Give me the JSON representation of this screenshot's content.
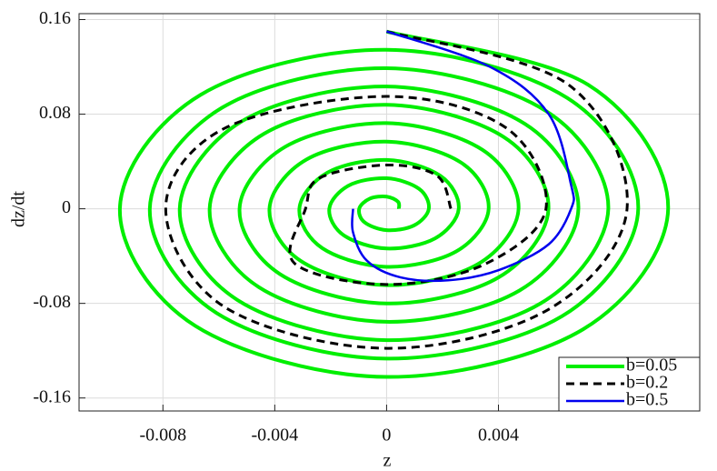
{
  "chart_data": {
    "type": "line",
    "x_label": "z",
    "y_label": "dz/dt",
    "xlim": [
      -0.011,
      0.0112
    ],
    "ylim": [
      -0.171,
      0.165
    ],
    "xticks": [
      -0.008,
      -0.004,
      0,
      0.004
    ],
    "yticks": [
      -0.16,
      -0.08,
      0,
      0.08,
      0.16
    ],
    "grid": true,
    "legend": "lower right",
    "series": [
      {
        "name": "b=0.05",
        "color": "#00ee00",
        "linestyle": "solid",
        "x": [
          0,
          0.00722,
          0.01007,
          0.00703,
          0,
          -0.00684,
          -0.00954,
          -0.00665,
          0,
          0.00646,
          0.009,
          0.00627,
          0,
          -0.00608,
          -0.00847,
          -0.00589,
          0,
          0.0057,
          0.00793,
          0.00551,
          0,
          -0.00533,
          -0.0074,
          -0.00514,
          0,
          0.00495,
          0.00686,
          0.00476,
          0,
          -0.00457,
          -0.00633,
          -0.00438,
          0,
          0.00419,
          0.00579,
          0.004,
          0,
          -0.00381,
          -0.00526,
          -0.00362,
          0,
          0.00343,
          0.00472,
          0.00325,
          0,
          -0.00306,
          -0.00419,
          -0.00287,
          0,
          0.00268,
          0.00365,
          0.00249,
          0,
          -0.0023,
          -0.00312,
          -0.00211,
          0,
          0.00192,
          0.00258,
          0.00173,
          0,
          -0.00154,
          -0.00205,
          -0.00135,
          0,
          0.00116,
          0.00151,
          0.00098,
          0,
          -0.00079,
          -0.00098,
          -0.0006,
          0,
          0.00041,
          0.00044
        ],
        "values": [
          0.1499,
          0.1047,
          0,
          -0.1019,
          -0.1422,
          -0.0991,
          0,
          0.0964,
          0.1344,
          0.0937,
          0,
          -0.0909,
          -0.1267,
          -0.0882,
          0,
          0.0854,
          0.1189,
          0.0827,
          0,
          -0.08,
          -0.1111,
          -0.0772,
          0,
          0.0745,
          0.1034,
          0.0717,
          0,
          -0.069,
          -0.0956,
          -0.0663,
          0,
          0.0635,
          0.0879,
          0.0607,
          0,
          -0.0581,
          -0.0801,
          -0.0553,
          0,
          0.0525,
          0.0724,
          0.0498,
          0,
          -0.047,
          -0.0646,
          -0.0443,
          0,
          0.0416,
          0.0568,
          0.0388,
          0,
          -0.0361,
          -0.0491,
          -0.0333,
          0,
          0.0306,
          0.0413,
          0.0279,
          0,
          -0.0251,
          -0.0336,
          -0.0223,
          0,
          0.0197,
          0.0258,
          0.0169,
          0,
          -0.0141,
          -0.0181,
          -0.0114,
          0,
          0.0086,
          0.0103,
          0.0059,
          0
        ]
      },
      {
        "name": "b=0.2",
        "color": "#000000",
        "linestyle": "dashed",
        "x": [
          0,
          0.0065,
          0.0086,
          0.0058,
          0,
          -0.0058,
          -0.0079,
          -0.0058,
          0,
          0.0043,
          0.0057,
          0.0035,
          0,
          -0.0033,
          -0.0029,
          -0.0024,
          0,
          0.0018,
          0.0023
        ],
        "values": [
          0.15,
          0.105,
          0,
          -0.085,
          -0.118,
          -0.083,
          0,
          0.068,
          0.095,
          0.068,
          0,
          -0.047,
          -0.064,
          -0.046,
          0,
          0.026,
          0.037,
          0.028,
          0
        ]
      },
      {
        "name": "b=0.5",
        "color": "#0000ee",
        "linestyle": "solid",
        "x": [
          0,
          0.0037,
          0.0058,
          0.0066,
          0.0066,
          0.0058,
          0.004,
          0.0022,
          0.0005,
          -0.0007,
          -0.0012,
          -0.0012
        ],
        "values": [
          0.15,
          0.12,
          0.08,
          0.02,
          0,
          -0.03,
          -0.052,
          -0.0605,
          -0.058,
          -0.044,
          -0.02,
          0
        ]
      }
    ]
  }
}
